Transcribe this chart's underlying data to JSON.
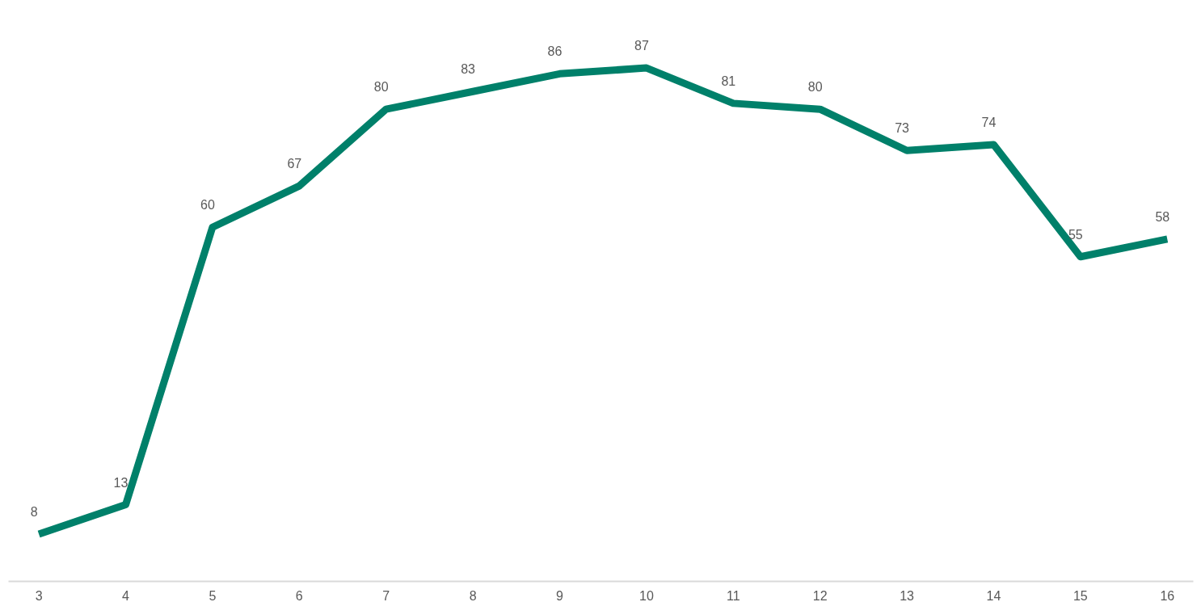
{
  "chart_data": {
    "type": "line",
    "categories": [
      "3",
      "4",
      "5",
      "6",
      "7",
      "8",
      "9",
      "10",
      "11",
      "12",
      "13",
      "14",
      "15",
      "16"
    ],
    "series": [
      {
        "color": "#00806a",
        "values": [
          8,
          13,
          60,
          67,
          80,
          83,
          86,
          87,
          81,
          80,
          73,
          74,
          55,
          58
        ]
      }
    ],
    "data_labels": true,
    "grid": false,
    "tick_labels": "x",
    "marker": "none",
    "line_style": "solid"
  }
}
